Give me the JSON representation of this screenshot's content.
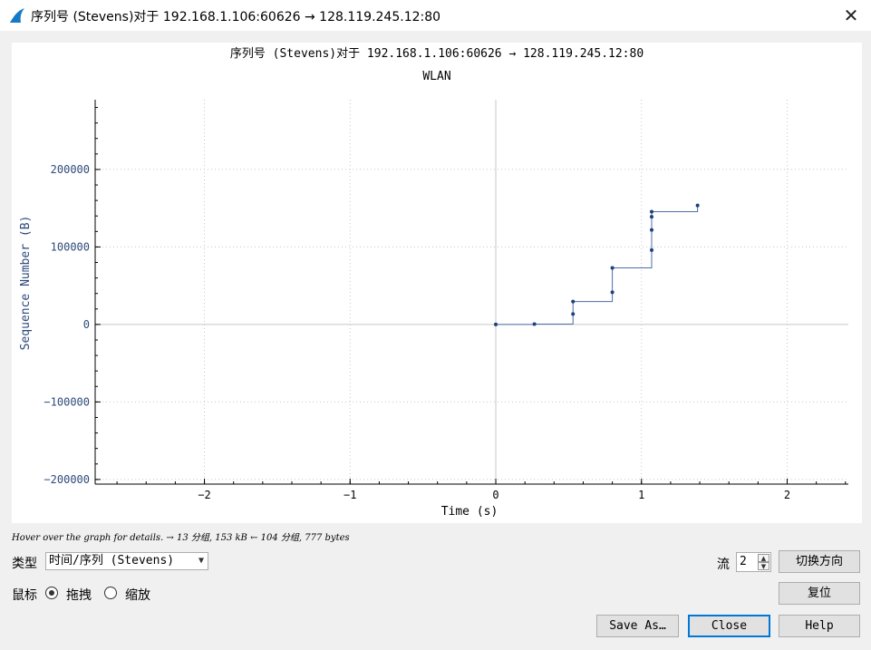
{
  "window": {
    "title": "序列号 (Stevens)对于 192.168.1.106:60626 → 128.119.245.12:80",
    "close_glyph": "✕",
    "icon": "wireshark-fin-icon"
  },
  "graph": {
    "title": "序列号 (Stevens)对于 192.168.1.106:60626 → 128.119.245.12:80",
    "subtitle": "WLAN",
    "hint": "Hover over the graph for details. → 13 分组, 153 kB ← 104 分组, 777 bytes"
  },
  "chart_data": {
    "type": "scatter",
    "title": "序列号 (Stevens)对于 192.168.1.106:60626 → 128.119.245.12:80",
    "subtitle": "WLAN",
    "xlabel": "Time (s)",
    "ylabel": "Sequence Number (B)",
    "xlim": [
      -2.75,
      2.42
    ],
    "ylim": [
      -206000,
      290000
    ],
    "xticks": [
      -2,
      -1,
      0,
      1,
      2
    ],
    "xtick_labels": [
      "−2",
      "−1",
      "0",
      "1",
      "2"
    ],
    "yticks": [
      -200000,
      -100000,
      0,
      100000,
      200000
    ],
    "ytick_labels": [
      "−200000",
      "−100000",
      "0",
      "100000",
      "200000"
    ],
    "grid": true,
    "line_color": "#4a6fa5",
    "point_color": "#1f3f7a",
    "points": [
      {
        "x": 0.0,
        "y": 0
      },
      {
        "x": 0.265,
        "y": 500
      },
      {
        "x": 0.53,
        "y": 13500
      },
      {
        "x": 0.53,
        "y": 29500
      },
      {
        "x": 0.8,
        "y": 41500
      },
      {
        "x": 0.8,
        "y": 73000
      },
      {
        "x": 1.07,
        "y": 96000
      },
      {
        "x": 1.07,
        "y": 122000
      },
      {
        "x": 1.07,
        "y": 139000
      },
      {
        "x": 1.07,
        "y": 145500
      },
      {
        "x": 1.385,
        "y": 153500
      }
    ]
  },
  "controls": {
    "type_label": "类型",
    "type_value": "时间/序列 (Stevens)",
    "mouse_label": "鼠标",
    "drag_label": "拖拽",
    "zoom_label": "缩放",
    "stream_label": "流",
    "stream_value": "2",
    "switch_direction": "切换方向",
    "reset": "复位",
    "save_as": "Save As…",
    "close": "Close",
    "help": "Help"
  }
}
